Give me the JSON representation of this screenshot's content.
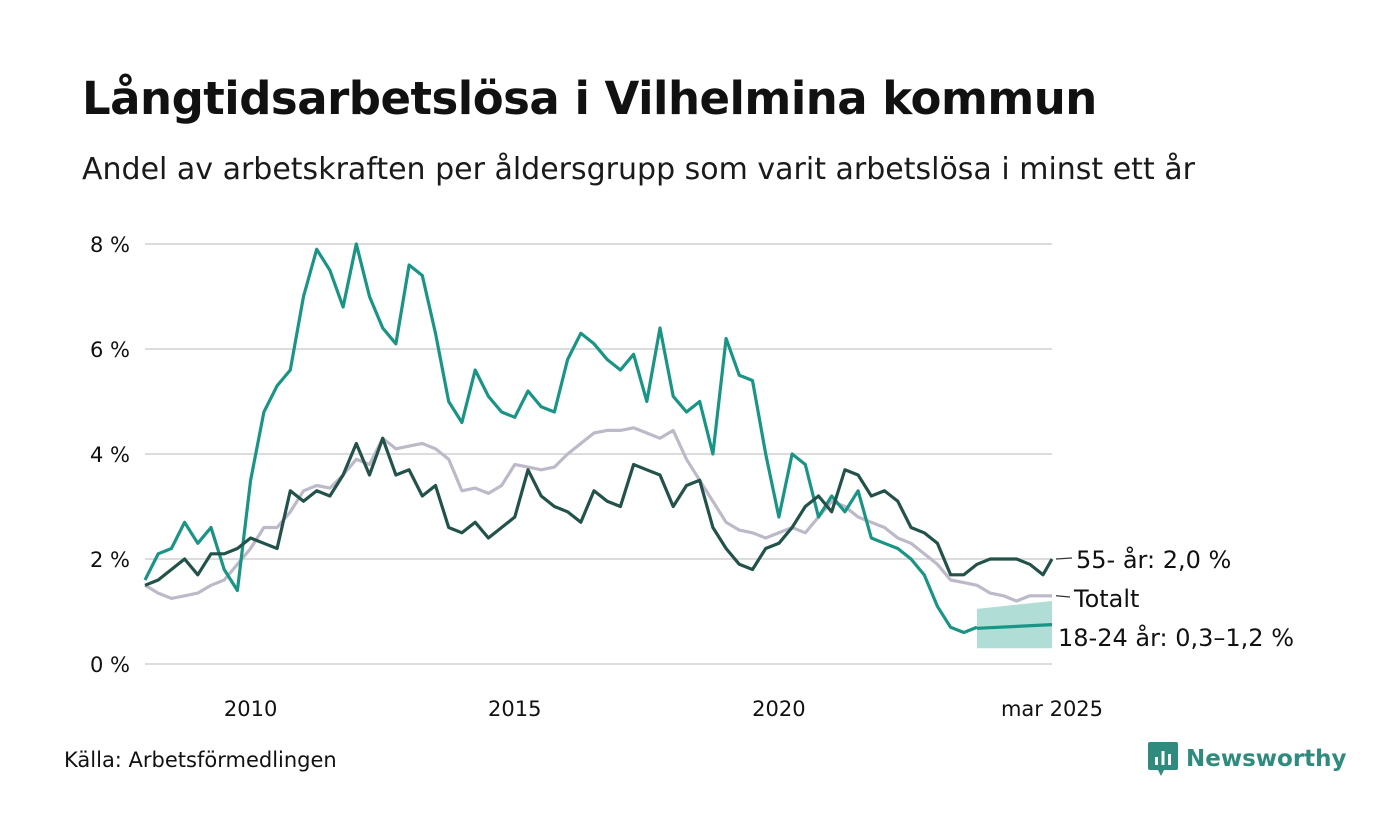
{
  "title": "Långtidsarbetslösa i Vilhelmina kommun",
  "subtitle": "Andel av arbetskraften per åldersgrupp som varit arbetslösa i minst ett år",
  "source": "Källa: Arbetsförmedlingen",
  "brand": {
    "name": "Newsworthy",
    "icon": "newsworthy-logo-icon",
    "color": "#2e8b7e"
  },
  "colors": {
    "youth": "#1a9485",
    "youth_band": "#a7d9d1",
    "senior": "#23524a",
    "total": "#bdb9c8",
    "grid": "#dcdcdc"
  },
  "chart_data": {
    "type": "line",
    "title": "Långtidsarbetslösa i Vilhelmina kommun",
    "xlim": [
      2008.0,
      2025.17
    ],
    "ylim": [
      0,
      8
    ],
    "y_ticks": [
      0,
      2,
      4,
      6,
      8
    ],
    "y_tick_labels": [
      "0 %",
      "2 %",
      "4 %",
      "6 %",
      "8 %"
    ],
    "x_ticks": [
      2010,
      2015,
      2020,
      2025.17
    ],
    "x_tick_labels": [
      "2010",
      "2015",
      "2020",
      "mar 2025"
    ],
    "grid": true,
    "series": [
      {
        "name": "Totalt",
        "label": "Totalt",
        "color": "#bdb9c8",
        "points": [
          [
            2008.0,
            1.5
          ],
          [
            2008.25,
            1.35
          ],
          [
            2008.5,
            1.25
          ],
          [
            2008.75,
            1.3
          ],
          [
            2009.0,
            1.35
          ],
          [
            2009.25,
            1.5
          ],
          [
            2009.5,
            1.6
          ],
          [
            2009.75,
            1.9
          ],
          [
            2010.0,
            2.2
          ],
          [
            2010.25,
            2.6
          ],
          [
            2010.5,
            2.6
          ],
          [
            2010.75,
            2.9
          ],
          [
            2011.0,
            3.3
          ],
          [
            2011.25,
            3.4
          ],
          [
            2011.5,
            3.35
          ],
          [
            2011.75,
            3.6
          ],
          [
            2012.0,
            3.9
          ],
          [
            2012.25,
            3.8
          ],
          [
            2012.5,
            4.3
          ],
          [
            2012.75,
            4.1
          ],
          [
            2013.0,
            4.15
          ],
          [
            2013.25,
            4.2
          ],
          [
            2013.5,
            4.1
          ],
          [
            2013.75,
            3.9
          ],
          [
            2014.0,
            3.3
          ],
          [
            2014.25,
            3.35
          ],
          [
            2014.5,
            3.25
          ],
          [
            2014.75,
            3.4
          ],
          [
            2015.0,
            3.8
          ],
          [
            2015.25,
            3.75
          ],
          [
            2015.5,
            3.7
          ],
          [
            2015.75,
            3.75
          ],
          [
            2016.0,
            4.0
          ],
          [
            2016.25,
            4.2
          ],
          [
            2016.5,
            4.4
          ],
          [
            2016.75,
            4.45
          ],
          [
            2017.0,
            4.45
          ],
          [
            2017.25,
            4.5
          ],
          [
            2017.5,
            4.4
          ],
          [
            2017.75,
            4.3
          ],
          [
            2018.0,
            4.45
          ],
          [
            2018.25,
            3.9
          ],
          [
            2018.5,
            3.5
          ],
          [
            2018.75,
            3.1
          ],
          [
            2019.0,
            2.7
          ],
          [
            2019.25,
            2.55
          ],
          [
            2019.5,
            2.5
          ],
          [
            2019.75,
            2.4
          ],
          [
            2020.0,
            2.5
          ],
          [
            2020.25,
            2.6
          ],
          [
            2020.5,
            2.5
          ],
          [
            2020.75,
            2.8
          ],
          [
            2021.0,
            3.1
          ],
          [
            2021.25,
            3.0
          ],
          [
            2021.5,
            2.8
          ],
          [
            2021.75,
            2.7
          ],
          [
            2022.0,
            2.6
          ],
          [
            2022.25,
            2.4
          ],
          [
            2022.5,
            2.3
          ],
          [
            2022.75,
            2.1
          ],
          [
            2023.0,
            1.9
          ],
          [
            2023.25,
            1.6
          ],
          [
            2023.5,
            1.55
          ],
          [
            2023.75,
            1.5
          ],
          [
            2024.0,
            1.35
          ],
          [
            2024.25,
            1.3
          ],
          [
            2024.5,
            1.2
          ],
          [
            2024.75,
            1.3
          ],
          [
            2025.17,
            1.3
          ]
        ]
      },
      {
        "name": "55- år",
        "label": "55- år: 2,0 %",
        "color": "#23524a",
        "points": [
          [
            2008.0,
            1.5
          ],
          [
            2008.25,
            1.6
          ],
          [
            2008.5,
            1.8
          ],
          [
            2008.75,
            2.0
          ],
          [
            2009.0,
            1.7
          ],
          [
            2009.25,
            2.1
          ],
          [
            2009.5,
            2.1
          ],
          [
            2009.75,
            2.2
          ],
          [
            2010.0,
            2.4
          ],
          [
            2010.25,
            2.3
          ],
          [
            2010.5,
            2.2
          ],
          [
            2010.75,
            3.3
          ],
          [
            2011.0,
            3.1
          ],
          [
            2011.25,
            3.3
          ],
          [
            2011.5,
            3.2
          ],
          [
            2011.75,
            3.6
          ],
          [
            2012.0,
            4.2
          ],
          [
            2012.25,
            3.6
          ],
          [
            2012.5,
            4.3
          ],
          [
            2012.75,
            3.6
          ],
          [
            2013.0,
            3.7
          ],
          [
            2013.25,
            3.2
          ],
          [
            2013.5,
            3.4
          ],
          [
            2013.75,
            2.6
          ],
          [
            2014.0,
            2.5
          ],
          [
            2014.25,
            2.7
          ],
          [
            2014.5,
            2.4
          ],
          [
            2014.75,
            2.6
          ],
          [
            2015.0,
            2.8
          ],
          [
            2015.25,
            3.7
          ],
          [
            2015.5,
            3.2
          ],
          [
            2015.75,
            3.0
          ],
          [
            2016.0,
            2.9
          ],
          [
            2016.25,
            2.7
          ],
          [
            2016.5,
            3.3
          ],
          [
            2016.75,
            3.1
          ],
          [
            2017.0,
            3.0
          ],
          [
            2017.25,
            3.8
          ],
          [
            2017.5,
            3.7
          ],
          [
            2017.75,
            3.6
          ],
          [
            2018.0,
            3.0
          ],
          [
            2018.25,
            3.4
          ],
          [
            2018.5,
            3.5
          ],
          [
            2018.75,
            2.6
          ],
          [
            2019.0,
            2.2
          ],
          [
            2019.25,
            1.9
          ],
          [
            2019.5,
            1.8
          ],
          [
            2019.75,
            2.2
          ],
          [
            2020.0,
            2.3
          ],
          [
            2020.25,
            2.6
          ],
          [
            2020.5,
            3.0
          ],
          [
            2020.75,
            3.2
          ],
          [
            2021.0,
            2.9
          ],
          [
            2021.25,
            3.7
          ],
          [
            2021.5,
            3.6
          ],
          [
            2021.75,
            3.2
          ],
          [
            2022.0,
            3.3
          ],
          [
            2022.25,
            3.1
          ],
          [
            2022.5,
            2.6
          ],
          [
            2022.75,
            2.5
          ],
          [
            2023.0,
            2.3
          ],
          [
            2023.25,
            1.7
          ],
          [
            2023.5,
            1.7
          ],
          [
            2023.75,
            1.9
          ],
          [
            2024.0,
            2.0
          ],
          [
            2024.25,
            2.0
          ],
          [
            2024.5,
            2.0
          ],
          [
            2024.75,
            1.9
          ],
          [
            2025.0,
            1.7
          ],
          [
            2025.17,
            2.0
          ]
        ]
      },
      {
        "name": "18-24 år",
        "label": "18-24 år: 0,3–1,2 %",
        "color": "#1a9485",
        "points": [
          [
            2008.0,
            1.6
          ],
          [
            2008.25,
            2.1
          ],
          [
            2008.5,
            2.2
          ],
          [
            2008.75,
            2.7
          ],
          [
            2009.0,
            2.3
          ],
          [
            2009.25,
            2.6
          ],
          [
            2009.5,
            1.8
          ],
          [
            2009.75,
            1.4
          ],
          [
            2010.0,
            3.5
          ],
          [
            2010.25,
            4.8
          ],
          [
            2010.5,
            5.3
          ],
          [
            2010.75,
            5.6
          ],
          [
            2011.0,
            7.0
          ],
          [
            2011.25,
            7.9
          ],
          [
            2011.5,
            7.5
          ],
          [
            2011.75,
            6.8
          ],
          [
            2012.0,
            8.0
          ],
          [
            2012.25,
            7.0
          ],
          [
            2012.5,
            6.4
          ],
          [
            2012.75,
            6.1
          ],
          [
            2013.0,
            7.6
          ],
          [
            2013.25,
            7.4
          ],
          [
            2013.5,
            6.3
          ],
          [
            2013.75,
            5.0
          ],
          [
            2014.0,
            4.6
          ],
          [
            2014.25,
            5.6
          ],
          [
            2014.5,
            5.1
          ],
          [
            2014.75,
            4.8
          ],
          [
            2015.0,
            4.7
          ],
          [
            2015.25,
            5.2
          ],
          [
            2015.5,
            4.9
          ],
          [
            2015.75,
            4.8
          ],
          [
            2016.0,
            5.8
          ],
          [
            2016.25,
            6.3
          ],
          [
            2016.5,
            6.1
          ],
          [
            2016.75,
            5.8
          ],
          [
            2017.0,
            5.6
          ],
          [
            2017.25,
            5.9
          ],
          [
            2017.5,
            5.0
          ],
          [
            2017.75,
            6.4
          ],
          [
            2018.0,
            5.1
          ],
          [
            2018.25,
            4.8
          ],
          [
            2018.5,
            5.0
          ],
          [
            2018.75,
            4.0
          ],
          [
            2019.0,
            6.2
          ],
          [
            2019.25,
            5.5
          ],
          [
            2019.5,
            5.4
          ],
          [
            2019.75,
            4.0
          ],
          [
            2020.0,
            2.8
          ],
          [
            2020.25,
            4.0
          ],
          [
            2020.5,
            3.8
          ],
          [
            2020.75,
            2.8
          ],
          [
            2021.0,
            3.2
          ],
          [
            2021.25,
            2.9
          ],
          [
            2021.5,
            3.3
          ],
          [
            2021.75,
            2.4
          ],
          [
            2022.0,
            2.3
          ],
          [
            2022.25,
            2.2
          ],
          [
            2022.5,
            2.0
          ],
          [
            2022.75,
            1.7
          ],
          [
            2023.0,
            1.1
          ],
          [
            2023.25,
            0.7
          ],
          [
            2023.5,
            0.6
          ],
          [
            2023.75,
            0.7
          ]
        ],
        "estimate": {
          "x": [
            2023.75,
            2025.17
          ],
          "center": [
            0.68,
            0.75
          ],
          "low": [
            0.3,
            0.3
          ],
          "high": [
            1.05,
            1.2
          ]
        }
      }
    ]
  }
}
